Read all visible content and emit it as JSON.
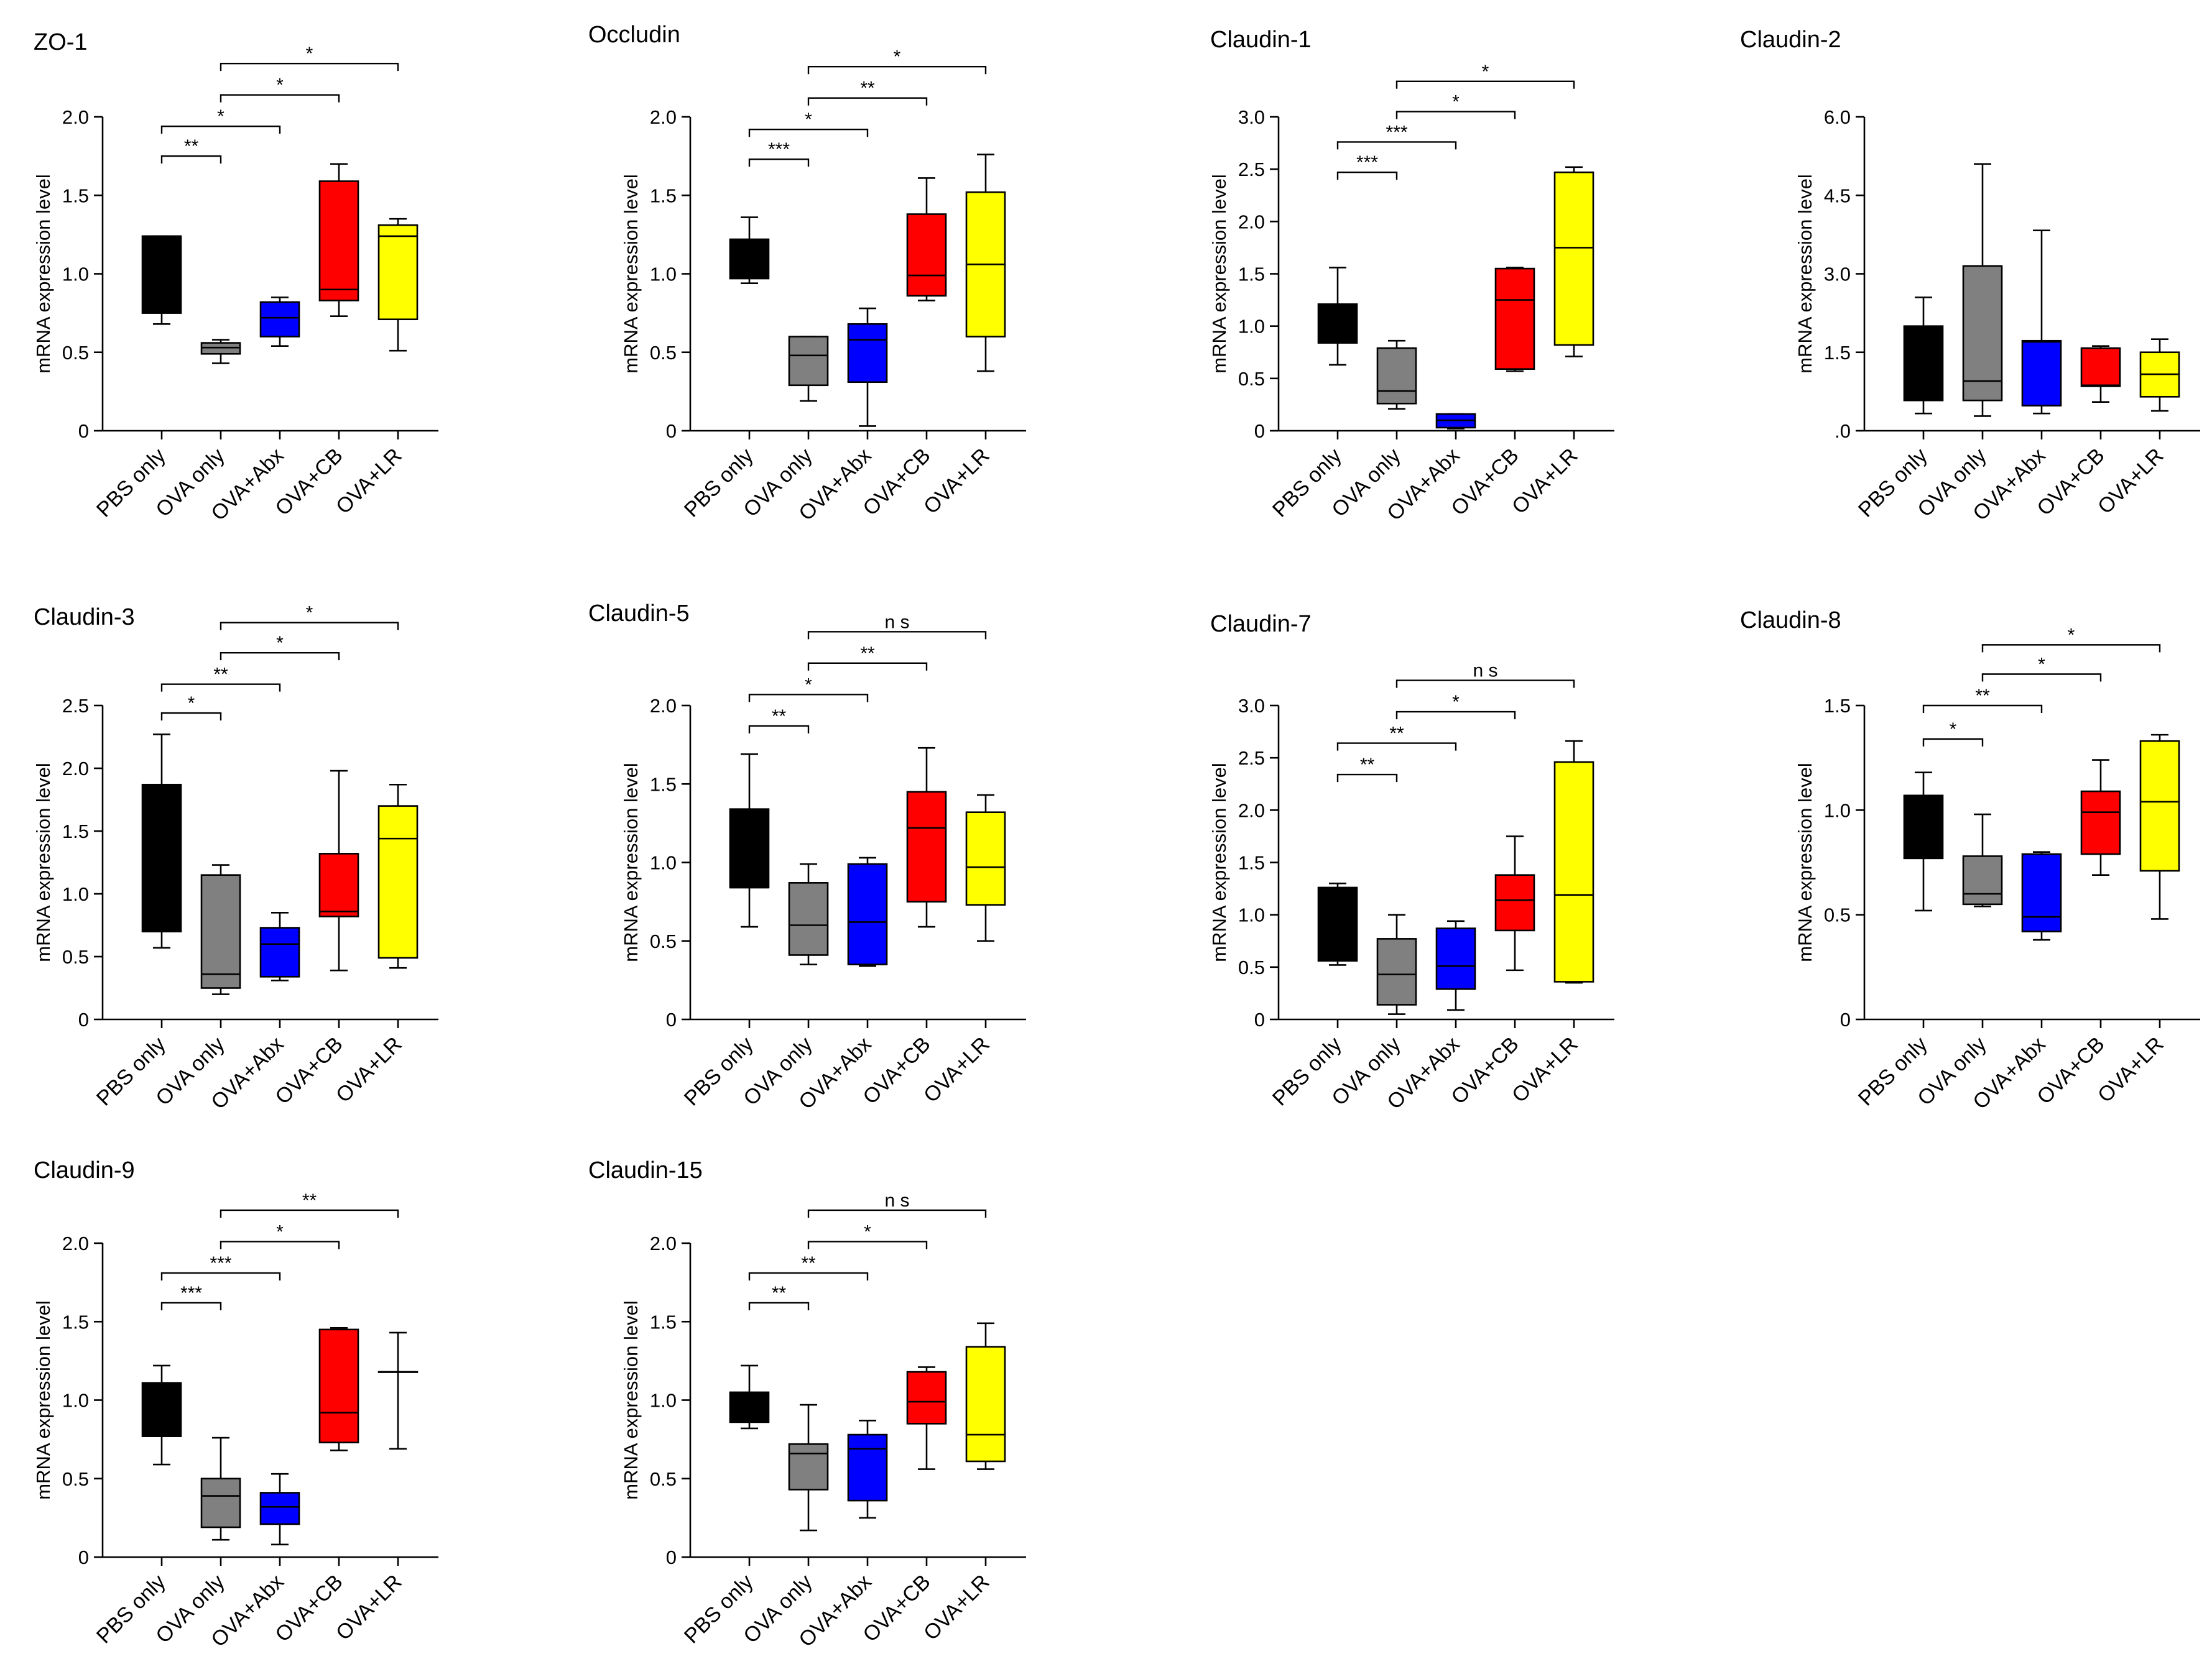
{
  "colors": {
    "PBS only": "#000000",
    "OVA only": "#808080",
    "OVA+Abx": "#0000ff",
    "OVA+CB": "#ff0000",
    "OVA+LR": "#ffff00"
  },
  "chart_data": [
    {
      "type": "box",
      "title": "ZO-1",
      "ylabel": "mRNA expression level",
      "ylim": [
        0,
        2.0
      ],
      "yticks": [
        "0",
        "0.5",
        "1.0",
        "1.5",
        "2.0"
      ],
      "categories": [
        "PBS only",
        "OVA only",
        "OVA+Abx",
        "OVA+CB",
        "OVA+LR"
      ],
      "boxes": [
        {
          "min": 0.68,
          "q1": 0.75,
          "median": 1.24,
          "q3": 1.24,
          "max": 1.24
        },
        {
          "min": 0.43,
          "q1": 0.49,
          "median": 0.53,
          "q3": 0.56,
          "max": 0.58
        },
        {
          "min": 0.54,
          "q1": 0.6,
          "median": 0.72,
          "q3": 0.82,
          "max": 0.85
        },
        {
          "min": 0.73,
          "q1": 0.83,
          "median": 0.9,
          "q3": 1.59,
          "max": 1.7
        },
        {
          "min": 0.51,
          "q1": 0.71,
          "median": 1.24,
          "q3": 1.31,
          "max": 1.35
        }
      ],
      "significance": [
        {
          "from": 0,
          "to": 1,
          "label": "**",
          "level": 1.75
        },
        {
          "from": 0,
          "to": 2,
          "label": "*",
          "level": 1.94
        },
        {
          "from": 1,
          "to": 3,
          "label": "*",
          "level": 2.14
        },
        {
          "from": 1,
          "to": 4,
          "label": "*",
          "level": 2.34
        }
      ]
    },
    {
      "type": "box",
      "title": "Occludin",
      "ylabel": "mRNA expression level",
      "ylim": [
        0,
        2.0
      ],
      "yticks": [
        "0",
        "0.5",
        "1.0",
        "1.5",
        "2.0"
      ],
      "categories": [
        "PBS only",
        "OVA only",
        "OVA+Abx",
        "OVA+CB",
        "OVA+LR"
      ],
      "boxes": [
        {
          "min": 0.94,
          "q1": 0.97,
          "median": 1.06,
          "q3": 1.22,
          "max": 1.36
        },
        {
          "min": 0.19,
          "q1": 0.29,
          "median": 0.48,
          "q3": 0.6,
          "max": 0.6
        },
        {
          "min": 0.03,
          "q1": 0.31,
          "median": 0.58,
          "q3": 0.68,
          "max": 0.78
        },
        {
          "min": 0.83,
          "q1": 0.86,
          "median": 0.99,
          "q3": 1.38,
          "max": 1.61
        },
        {
          "min": 0.38,
          "q1": 0.6,
          "median": 1.06,
          "q3": 1.52,
          "max": 1.76
        }
      ],
      "significance": [
        {
          "from": 0,
          "to": 1,
          "label": "***",
          "level": 1.73
        },
        {
          "from": 0,
          "to": 2,
          "label": "*",
          "level": 1.92
        },
        {
          "from": 1,
          "to": 3,
          "label": "**",
          "level": 2.12
        },
        {
          "from": 1,
          "to": 4,
          "label": "*",
          "level": 2.32
        }
      ]
    },
    {
      "type": "box",
      "title": "Claudin-1",
      "ylabel": "mRNA expression level",
      "ylim": [
        0,
        3.0
      ],
      "yticks": [
        "0",
        "0.5",
        "1.0",
        "1.5",
        "2.0",
        "2.5",
        "3.0"
      ],
      "categories": [
        "PBS only",
        "OVA only",
        "OVA+Abx",
        "OVA+CB",
        "OVA+LR"
      ],
      "boxes": [
        {
          "min": 0.63,
          "q1": 0.84,
          "median": 0.99,
          "q3": 1.21,
          "max": 1.56
        },
        {
          "min": 0.21,
          "q1": 0.26,
          "median": 0.38,
          "q3": 0.79,
          "max": 0.86
        },
        {
          "min": 0.02,
          "q1": 0.03,
          "median": 0.1,
          "q3": 0.16,
          "max": 0.16
        },
        {
          "min": 0.57,
          "q1": 0.59,
          "median": 1.25,
          "q3": 1.55,
          "max": 1.56
        },
        {
          "min": 0.71,
          "q1": 0.82,
          "median": 1.75,
          "q3": 2.47,
          "max": 2.52
        }
      ],
      "significance": [
        {
          "from": 0,
          "to": 1,
          "label": "***",
          "level": 2.47
        },
        {
          "from": 0,
          "to": 2,
          "label": "***",
          "level": 2.76
        },
        {
          "from": 1,
          "to": 3,
          "label": "*",
          "level": 3.05
        },
        {
          "from": 1,
          "to": 4,
          "label": "*",
          "level": 3.34
        }
      ]
    },
    {
      "type": "box",
      "title": "Claudin-2",
      "ylabel": "mRNA expression level",
      "ylim": [
        0,
        6.0
      ],
      "yticks": [
        ".0",
        "1.5",
        "3.0",
        "4.5",
        "6.0"
      ],
      "categories": [
        "PBS only",
        "OVA only",
        "OVA+Abx",
        "OVA+CB",
        "OVA+LR"
      ],
      "boxes": [
        {
          "min": 0.33,
          "q1": 0.58,
          "median": 0.58,
          "q3": 2.0,
          "max": 2.55
        },
        {
          "min": 0.28,
          "q1": 0.58,
          "median": 0.95,
          "q3": 3.15,
          "max": 5.1
        },
        {
          "min": 0.33,
          "q1": 0.48,
          "median": 1.7,
          "q3": 1.72,
          "max": 3.83
        },
        {
          "min": 0.55,
          "q1": 0.85,
          "median": 0.87,
          "q3": 1.58,
          "max": 1.62
        },
        {
          "min": 0.38,
          "q1": 0.65,
          "median": 1.08,
          "q3": 1.5,
          "max": 1.75
        }
      ],
      "significance": []
    },
    {
      "type": "box",
      "title": "Claudin-3",
      "ylabel": "mRNA expression level",
      "ylim": [
        0,
        2.5
      ],
      "yticks": [
        "0",
        "0.5",
        "1.0",
        "1.5",
        "2.0",
        "2.5"
      ],
      "categories": [
        "PBS only",
        "OVA only",
        "OVA+Abx",
        "OVA+CB",
        "OVA+LR"
      ],
      "boxes": [
        {
          "min": 0.57,
          "q1": 0.7,
          "median": 0.7,
          "q3": 1.87,
          "max": 2.27
        },
        {
          "min": 0.2,
          "q1": 0.25,
          "median": 0.36,
          "q3": 1.15,
          "max": 1.23
        },
        {
          "min": 0.31,
          "q1": 0.34,
          "median": 0.6,
          "q3": 0.73,
          "max": 0.85
        },
        {
          "min": 0.39,
          "q1": 0.82,
          "median": 0.86,
          "q3": 1.32,
          "max": 1.98
        },
        {
          "min": 0.41,
          "q1": 0.49,
          "median": 1.44,
          "q3": 1.7,
          "max": 1.87
        }
      ],
      "significance": [
        {
          "from": 0,
          "to": 1,
          "label": "*",
          "level": 2.44
        },
        {
          "from": 0,
          "to": 2,
          "label": "**",
          "level": 2.67
        },
        {
          "from": 1,
          "to": 3,
          "label": "*",
          "level": 2.92
        },
        {
          "from": 1,
          "to": 4,
          "label": "*",
          "level": 3.16
        }
      ]
    },
    {
      "type": "box",
      "title": "Claudin-5",
      "ylabel": "mRNA expression level",
      "ylim": [
        0,
        2.0
      ],
      "yticks": [
        "0",
        "0.5",
        "1.0",
        "1.5",
        "2.0"
      ],
      "categories": [
        "PBS only",
        "OVA only",
        "OVA+Abx",
        "OVA+CB",
        "OVA+LR"
      ],
      "boxes": [
        {
          "min": 0.59,
          "q1": 0.84,
          "median": 0.84,
          "q3": 1.34,
          "max": 1.69
        },
        {
          "min": 0.35,
          "q1": 0.41,
          "median": 0.6,
          "q3": 0.87,
          "max": 0.99
        },
        {
          "min": 0.34,
          "q1": 0.35,
          "median": 0.62,
          "q3": 0.99,
          "max": 1.03
        },
        {
          "min": 0.59,
          "q1": 0.75,
          "median": 1.22,
          "q3": 1.45,
          "max": 1.73
        },
        {
          "min": 0.5,
          "q1": 0.73,
          "median": 0.97,
          "q3": 1.32,
          "max": 1.43
        }
      ],
      "significance": [
        {
          "from": 0,
          "to": 1,
          "label": "**",
          "level": 1.87
        },
        {
          "from": 0,
          "to": 2,
          "label": "*",
          "level": 2.07
        },
        {
          "from": 1,
          "to": 3,
          "label": "**",
          "level": 2.27
        },
        {
          "from": 1,
          "to": 4,
          "label": "n s",
          "level": 2.47
        }
      ]
    },
    {
      "type": "box",
      "title": "Claudin-7",
      "ylabel": "mRNA expression level",
      "ylim": [
        0,
        3.0
      ],
      "yticks": [
        "0",
        "0.5",
        "1.0",
        "1.5",
        "2.0",
        "2.5",
        "3.0"
      ],
      "categories": [
        "PBS only",
        "OVA only",
        "OVA+Abx",
        "OVA+CB",
        "OVA+LR"
      ],
      "boxes": [
        {
          "min": 0.52,
          "q1": 0.56,
          "median": 0.56,
          "q3": 1.26,
          "max": 1.3
        },
        {
          "min": 0.05,
          "q1": 0.14,
          "median": 0.43,
          "q3": 0.77,
          "max": 1.0
        },
        {
          "min": 0.09,
          "q1": 0.29,
          "median": 0.51,
          "q3": 0.87,
          "max": 0.94
        },
        {
          "min": 0.47,
          "q1": 0.85,
          "median": 1.14,
          "q3": 1.38,
          "max": 1.75
        },
        {
          "min": 0.35,
          "q1": 0.36,
          "median": 1.19,
          "q3": 2.46,
          "max": 2.66
        }
      ],
      "significance": [
        {
          "from": 0,
          "to": 1,
          "label": "**",
          "level": 2.34
        },
        {
          "from": 0,
          "to": 2,
          "label": "**",
          "level": 2.64
        },
        {
          "from": 1,
          "to": 3,
          "label": "*",
          "level": 2.94
        },
        {
          "from": 1,
          "to": 4,
          "label": "n s",
          "level": 3.24
        }
      ]
    },
    {
      "type": "box",
      "title": "Claudin-8",
      "ylabel": "mRNA expression level",
      "ylim": [
        0,
        1.5
      ],
      "yticks": [
        "0",
        "0.5",
        "1.0",
        "1.5"
      ],
      "categories": [
        "PBS only",
        "OVA only",
        "OVA+Abx",
        "OVA+CB",
        "OVA+LR"
      ],
      "boxes": [
        {
          "min": 0.52,
          "q1": 0.77,
          "median": 0.77,
          "q3": 1.07,
          "max": 1.18
        },
        {
          "min": 0.54,
          "q1": 0.55,
          "median": 0.6,
          "q3": 0.78,
          "max": 0.98
        },
        {
          "min": 0.38,
          "q1": 0.42,
          "median": 0.49,
          "q3": 0.79,
          "max": 0.8
        },
        {
          "min": 0.69,
          "q1": 0.79,
          "median": 0.99,
          "q3": 1.09,
          "max": 1.24
        },
        {
          "min": 0.48,
          "q1": 0.71,
          "median": 1.04,
          "q3": 1.33,
          "max": 1.36
        }
      ],
      "significance": [
        {
          "from": 0,
          "to": 1,
          "label": "*",
          "level": 1.34
        },
        {
          "from": 0,
          "to": 2,
          "label": "**",
          "level": 1.5
        },
        {
          "from": 1,
          "to": 3,
          "label": "*",
          "level": 1.65
        },
        {
          "from": 1,
          "to": 4,
          "label": "*",
          "level": 1.79
        }
      ]
    },
    {
      "type": "box",
      "title": "Claudin-9",
      "ylabel": "mRNA expression level",
      "ylim": [
        0,
        2.0
      ],
      "yticks": [
        "0",
        "0.5",
        "1.0",
        "1.5",
        "2.0"
      ],
      "categories": [
        "PBS only",
        "OVA only",
        "OVA+Abx",
        "OVA+CB",
        "OVA+LR"
      ],
      "boxes": [
        {
          "min": 0.59,
          "q1": 0.77,
          "median": 0.77,
          "q3": 1.11,
          "max": 1.22
        },
        {
          "min": 0.11,
          "q1": 0.19,
          "median": 0.39,
          "q3": 0.5,
          "max": 0.76
        },
        {
          "min": 0.08,
          "q1": 0.21,
          "median": 0.32,
          "q3": 0.41,
          "max": 0.53
        },
        {
          "min": 0.68,
          "q1": 0.73,
          "median": 0.92,
          "q3": 1.45,
          "max": 1.46
        },
        {
          "min": 0.69,
          "q1": 1.18,
          "median": 1.18,
          "q3": 1.18,
          "max": 1.43
        }
      ],
      "significance": [
        {
          "from": 0,
          "to": 1,
          "label": "***",
          "level": 1.62
        },
        {
          "from": 0,
          "to": 2,
          "label": "***",
          "level": 1.81
        },
        {
          "from": 1,
          "to": 3,
          "label": "*",
          "level": 2.01
        },
        {
          "from": 1,
          "to": 4,
          "label": "**",
          "level": 2.21
        }
      ]
    },
    {
      "type": "box",
      "title": "Claudin-15",
      "ylabel": "mRNA expression level",
      "ylim": [
        0,
        2.0
      ],
      "yticks": [
        "0",
        "0.5",
        "1.0",
        "1.5",
        "2.0"
      ],
      "categories": [
        "PBS only",
        "OVA only",
        "OVA+Abx",
        "OVA+CB",
        "OVA+LR"
      ],
      "boxes": [
        {
          "min": 0.82,
          "q1": 0.86,
          "median": 0.86,
          "q3": 1.05,
          "max": 1.22
        },
        {
          "min": 0.17,
          "q1": 0.43,
          "median": 0.66,
          "q3": 0.72,
          "max": 0.97
        },
        {
          "min": 0.25,
          "q1": 0.36,
          "median": 0.69,
          "q3": 0.78,
          "max": 0.87
        },
        {
          "min": 0.56,
          "q1": 0.85,
          "median": 0.99,
          "q3": 1.18,
          "max": 1.21
        },
        {
          "min": 0.56,
          "q1": 0.61,
          "median": 0.78,
          "q3": 1.34,
          "max": 1.49
        }
      ],
      "significance": [
        {
          "from": 0,
          "to": 1,
          "label": "**",
          "level": 1.62
        },
        {
          "from": 0,
          "to": 2,
          "label": "**",
          "level": 1.81
        },
        {
          "from": 1,
          "to": 3,
          "label": "*",
          "level": 2.01
        },
        {
          "from": 1,
          "to": 4,
          "label": "n s",
          "level": 2.21
        }
      ]
    }
  ]
}
